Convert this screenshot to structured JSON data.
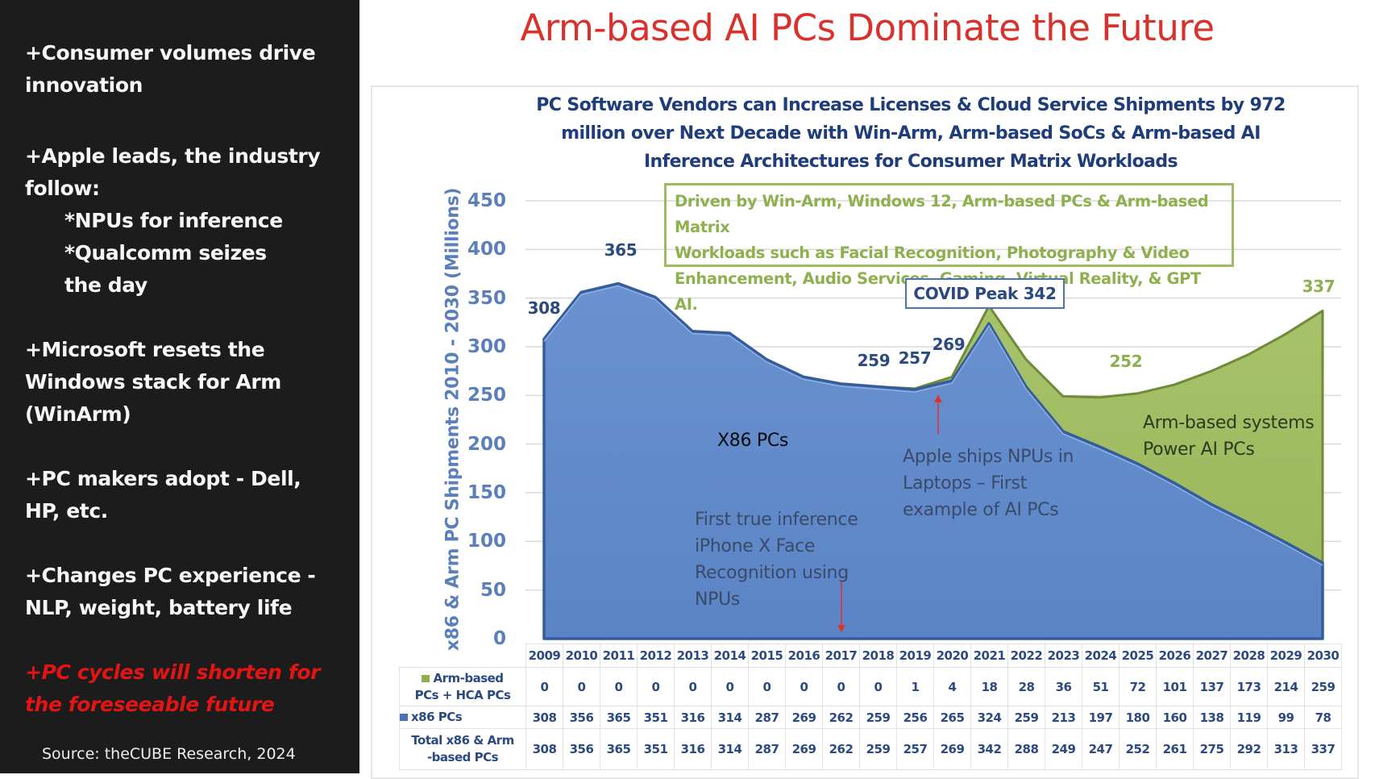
{
  "left_panel": {
    "bullets": [
      {
        "lines": [
          "+Consumer volumes drive",
          "innovation"
        ]
      },
      {
        "lines": [
          "+Apple leads, the industry",
          "follow:"
        ],
        "sub": [
          "*NPUs for inference",
          "*Qualcomm seizes",
          "the day"
        ]
      },
      {
        "lines": [
          "+Microsoft resets the",
          "Windows stack for Arm",
          "(WinArm)"
        ]
      },
      {
        "lines": [
          "+PC makers adopt - Dell,",
          "HP, etc."
        ]
      },
      {
        "lines": [
          "+Changes PC experience -",
          "NLP, weight, battery life"
        ]
      },
      {
        "lines": [
          "+PC cycles will shorten for",
          "the foreseeable future"
        ],
        "highlight": true
      }
    ],
    "source": "Source: theCUBE Research, 2024"
  },
  "main_title": "Arm-based AI PCs Dominate the Future",
  "colors": {
    "title_red": "#d9312c",
    "x86_blue": "#5b86c8",
    "arm_green": "#9dbb5f",
    "navy_text": "#2c4a82",
    "panel_bg": "#1c1c1c",
    "highlight_red": "#e31414"
  },
  "chart_data": {
    "type": "area",
    "stacked": true,
    "title": "PC Software Vendors can Increase Licenses & Cloud Service Shipments by 972 million over Next Decade with Win-Arm, Arm-based SoCs & Arm-based AI Inference Architectures for Consumer Matrix Workloads",
    "title_lines": [
      "PC Software Vendors can Increase Licenses & Cloud Service Shipments by 972",
      "million over Next Decade with Win-Arm, Arm-based SoCs & Arm-based AI",
      "Inference Architectures for Consumer Matrix Workloads"
    ],
    "xlabel": "",
    "ylabel": "x86 & Arm PC Shipments 2010 - 2030 (Millions)",
    "ylim": [
      0,
      450
    ],
    "yticks": [
      0,
      50,
      100,
      150,
      200,
      250,
      300,
      350,
      400,
      450
    ],
    "grid": true,
    "categories": [
      "2009",
      "2010",
      "2011",
      "2012",
      "2013",
      "2014",
      "2015",
      "2016",
      "2017",
      "2018",
      "2019",
      "2020",
      "2021",
      "2022",
      "2023",
      "2024",
      "2025",
      "2026",
      "2027",
      "2028",
      "2029",
      "2030"
    ],
    "series": [
      {
        "name": "x86 PCs",
        "color": "#5b86c8",
        "values": [
          308,
          356,
          365,
          351,
          316,
          314,
          287,
          269,
          262,
          259,
          256,
          265,
          324,
          259,
          213,
          197,
          180,
          160,
          138,
          119,
          99,
          78
        ]
      },
      {
        "name": "Arm-based PCs + HCA PCs",
        "color": "#9dbb5f",
        "values": [
          0,
          0,
          0,
          0,
          0,
          0,
          0,
          0,
          0,
          0,
          1,
          4,
          18,
          28,
          36,
          51,
          72,
          101,
          137,
          173,
          214,
          259
        ]
      }
    ],
    "totals": {
      "name": "Total x86 & Arm -based PCs",
      "values": [
        308,
        356,
        365,
        351,
        316,
        314,
        287,
        269,
        262,
        259,
        257,
        269,
        342,
        288,
        249,
        247,
        252,
        261,
        275,
        292,
        313,
        337
      ]
    },
    "data_labels": [
      {
        "text": "308",
        "year": "2009",
        "color": "navy"
      },
      {
        "text": "365",
        "year": "2011",
        "color": "navy"
      },
      {
        "text": "259",
        "year": "2018",
        "color": "navy"
      },
      {
        "text": "257",
        "year": "2019",
        "color": "navy"
      },
      {
        "text": "269",
        "year": "2020",
        "color": "navy"
      },
      {
        "text": "252",
        "year": "2025",
        "color": "green"
      },
      {
        "text": "337",
        "year": "2030",
        "color": "green"
      }
    ],
    "annotations": {
      "green_box": [
        "Driven by Win-Arm, Windows 12, Arm-based PCs & Arm-based Matrix",
        "Workloads such as Facial Recognition, Photography & Video",
        "Enhancement, Audio Services, Gaming, Virtual Reality, & GPT AI."
      ],
      "covid_peak": "COVID Peak 342",
      "x86_area_label": "X86 PCs",
      "arm_area_label": [
        "Arm-based systems",
        "Power AI PCs"
      ],
      "iphone_note": [
        "First true inference",
        "iPhone X Face",
        "Recognition using",
        "NPUs"
      ],
      "apple_note": [
        "Apple ships NPUs in",
        "Laptops – First",
        "example of AI PCs"
      ]
    },
    "table": {
      "rows": [
        {
          "label_lines": [
            "Arm-based",
            "PCs + HCA PCs"
          ],
          "marker": "arm"
        },
        {
          "label_lines": [
            "x86 PCs"
          ],
          "marker": "x86"
        },
        {
          "label_lines": [
            "Total x86 & Arm",
            "-based PCs"
          ],
          "marker": null
        }
      ]
    }
  }
}
